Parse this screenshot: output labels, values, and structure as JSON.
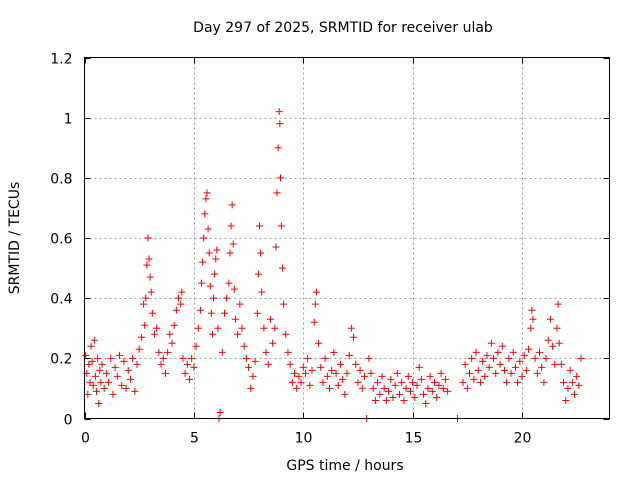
{
  "chart_data": {
    "type": "scatter",
    "title": "Day 297 of 2025, SRMTID for receiver ulab",
    "xlabel": "GPS time / hours",
    "ylabel": "SRMTID / TECUs",
    "xlim": [
      0,
      24
    ],
    "ylim": [
      0,
      1.2
    ],
    "x_ticks": [
      0,
      5,
      10,
      15,
      20
    ],
    "x_tick_labels": [
      "0",
      "5",
      "10",
      "15",
      "20"
    ],
    "y_ticks": [
      0,
      0.2,
      0.4,
      0.6,
      0.8,
      1.0,
      1.2
    ],
    "y_tick_labels": [
      "0",
      "0.2",
      "0.4",
      "0.6",
      "0.8",
      "1",
      "1.2"
    ],
    "grid": true,
    "marker": "plus",
    "series": [
      {
        "name": "SRMTID",
        "color": "#ff0000",
        "points": [
          [
            0.05,
            0.21
          ],
          [
            0.1,
            0.15
          ],
          [
            0.15,
            0.08
          ],
          [
            0.2,
            0.18
          ],
          [
            0.25,
            0.12
          ],
          [
            0.3,
            0.24
          ],
          [
            0.35,
            0.19
          ],
          [
            0.4,
            0.11
          ],
          [
            0.45,
            0.26
          ],
          [
            0.5,
            0.14
          ],
          [
            0.55,
            0.09
          ],
          [
            0.6,
            0.2
          ],
          [
            0.65,
            0.05
          ],
          [
            0.7,
            0.16
          ],
          [
            0.75,
            0.12
          ],
          [
            0.8,
            0.18
          ],
          [
            0.9,
            0.1
          ],
          [
            1.0,
            0.15
          ],
          [
            1.1,
            0.12
          ],
          [
            1.2,
            0.2
          ],
          [
            1.3,
            0.08
          ],
          [
            1.4,
            0.17
          ],
          [
            1.5,
            0.14
          ],
          [
            1.6,
            0.21
          ],
          [
            1.7,
            0.11
          ],
          [
            1.8,
            0.19
          ],
          [
            1.9,
            0.1
          ],
          [
            2.0,
            0.16
          ],
          [
            2.1,
            0.13
          ],
          [
            2.2,
            0.2
          ],
          [
            2.3,
            0.09
          ],
          [
            2.4,
            0.18
          ],
          [
            2.5,
            0.23
          ],
          [
            2.6,
            0.27
          ],
          [
            2.7,
            0.38
          ],
          [
            2.75,
            0.31
          ],
          [
            2.8,
            0.4
          ],
          [
            2.85,
            0.51
          ],
          [
            2.9,
            0.6
          ],
          [
            2.95,
            0.53
          ],
          [
            3.0,
            0.47
          ],
          [
            3.05,
            0.42
          ],
          [
            3.1,
            0.35
          ],
          [
            3.2,
            0.28
          ],
          [
            3.3,
            0.3
          ],
          [
            3.4,
            0.22
          ],
          [
            3.5,
            0.18
          ],
          [
            3.6,
            0.2
          ],
          [
            3.7,
            0.15
          ],
          [
            3.8,
            0.22
          ],
          [
            3.9,
            0.28
          ],
          [
            4.0,
            0.25
          ],
          [
            4.1,
            0.31
          ],
          [
            4.2,
            0.36
          ],
          [
            4.3,
            0.4
          ],
          [
            4.4,
            0.38
          ],
          [
            4.45,
            0.42
          ],
          [
            4.5,
            0.2
          ],
          [
            4.6,
            0.15
          ],
          [
            4.7,
            0.18
          ],
          [
            4.8,
            0.13
          ],
          [
            4.9,
            0.2
          ],
          [
            5.0,
            0.17
          ],
          [
            5.1,
            0.24
          ],
          [
            5.2,
            0.3
          ],
          [
            5.3,
            0.36
          ],
          [
            5.35,
            0.45
          ],
          [
            5.4,
            0.52
          ],
          [
            5.45,
            0.6
          ],
          [
            5.5,
            0.68
          ],
          [
            5.55,
            0.73
          ],
          [
            5.6,
            0.75
          ],
          [
            5.65,
            0.63
          ],
          [
            5.7,
            0.55
          ],
          [
            5.75,
            0.44
          ],
          [
            5.8,
            0.35
          ],
          [
            5.85,
            0.28
          ],
          [
            5.9,
            0.4
          ],
          [
            5.95,
            0.48
          ],
          [
            6.0,
            0.53
          ],
          [
            6.05,
            0.56
          ],
          [
            6.1,
            0.3
          ],
          [
            6.15,
            0.0
          ],
          [
            6.2,
            0.02
          ],
          [
            6.3,
            0.22
          ],
          [
            6.4,
            0.35
          ],
          [
            6.5,
            0.4
          ],
          [
            6.6,
            0.45
          ],
          [
            6.65,
            0.55
          ],
          [
            6.7,
            0.64
          ],
          [
            6.75,
            0.71
          ],
          [
            6.8,
            0.58
          ],
          [
            6.85,
            0.43
          ],
          [
            6.9,
            0.33
          ],
          [
            7.0,
            0.28
          ],
          [
            7.1,
            0.38
          ],
          [
            7.2,
            0.3
          ],
          [
            7.3,
            0.24
          ],
          [
            7.4,
            0.2
          ],
          [
            7.5,
            0.17
          ],
          [
            7.6,
            0.1
          ],
          [
            7.7,
            0.14
          ],
          [
            7.8,
            0.19
          ],
          [
            7.9,
            0.35
          ],
          [
            7.95,
            0.48
          ],
          [
            8.0,
            0.64
          ],
          [
            8.05,
            0.55
          ],
          [
            8.1,
            0.42
          ],
          [
            8.2,
            0.3
          ],
          [
            8.3,
            0.22
          ],
          [
            8.4,
            0.18
          ],
          [
            8.5,
            0.33
          ],
          [
            8.6,
            0.25
          ],
          [
            8.7,
            0.3
          ],
          [
            8.75,
            0.57
          ],
          [
            8.8,
            0.75
          ],
          [
            8.85,
            0.9
          ],
          [
            8.9,
            1.02
          ],
          [
            8.93,
            0.98
          ],
          [
            8.96,
            0.8
          ],
          [
            9.0,
            0.64
          ],
          [
            9.05,
            0.5
          ],
          [
            9.1,
            0.38
          ],
          [
            9.2,
            0.28
          ],
          [
            9.3,
            0.22
          ],
          [
            9.4,
            0.18
          ],
          [
            9.5,
            0.12
          ],
          [
            9.6,
            0.15
          ],
          [
            9.7,
            0.1
          ],
          [
            9.8,
            0.14
          ],
          [
            9.9,
            0.12
          ],
          [
            10.0,
            0.17
          ],
          [
            10.1,
            0.15
          ],
          [
            10.2,
            0.2
          ],
          [
            10.3,
            0.11
          ],
          [
            10.4,
            0.16
          ],
          [
            10.5,
            0.32
          ],
          [
            10.55,
            0.38
          ],
          [
            10.6,
            0.42
          ],
          [
            10.7,
            0.25
          ],
          [
            10.8,
            0.17
          ],
          [
            10.9,
            0.12
          ],
          [
            11.0,
            0.2
          ],
          [
            11.1,
            0.14
          ],
          [
            11.2,
            0.1
          ],
          [
            11.3,
            0.16
          ],
          [
            11.4,
            0.22
          ],
          [
            11.5,
            0.15
          ],
          [
            11.6,
            0.11
          ],
          [
            11.7,
            0.18
          ],
          [
            11.8,
            0.13
          ],
          [
            11.9,
            0.08
          ],
          [
            12.0,
            0.15
          ],
          [
            12.1,
            0.21
          ],
          [
            12.2,
            0.3
          ],
          [
            12.3,
            0.27
          ],
          [
            12.4,
            0.18
          ],
          [
            12.5,
            0.12
          ],
          [
            12.6,
            0.16
          ],
          [
            12.7,
            0.1
          ],
          [
            12.8,
            0.14
          ],
          [
            12.9,
            0.0
          ],
          [
            13.0,
            0.2
          ],
          [
            13.1,
            0.15
          ],
          [
            13.2,
            0.1
          ],
          [
            13.3,
            0.06
          ],
          [
            13.4,
            0.12
          ],
          [
            13.5,
            0.08
          ],
          [
            13.6,
            0.14
          ],
          [
            13.7,
            0.1
          ],
          [
            13.8,
            0.06
          ],
          [
            13.9,
            0.09
          ],
          [
            14.0,
            0.13
          ],
          [
            14.1,
            0.07
          ],
          [
            14.2,
            0.11
          ],
          [
            14.3,
            0.15
          ],
          [
            14.4,
            0.08
          ],
          [
            14.5,
            0.12
          ],
          [
            14.6,
            0.06
          ],
          [
            14.7,
            0.1
          ],
          [
            14.8,
            0.14
          ],
          [
            14.9,
            0.09
          ],
          [
            15.0,
            0.12
          ],
          [
            15.1,
            0.07
          ],
          [
            15.2,
            0.11
          ],
          [
            15.3,
            0.17
          ],
          [
            15.4,
            0.13
          ],
          [
            15.5,
            0.08
          ],
          [
            15.6,
            0.05
          ],
          [
            15.7,
            0.1
          ],
          [
            15.8,
            0.14
          ],
          [
            15.9,
            0.09
          ],
          [
            16.0,
            0.12
          ],
          [
            16.1,
            0.07
          ],
          [
            16.2,
            0.11
          ],
          [
            16.3,
            0.15
          ],
          [
            16.4,
            0.1
          ],
          [
            16.5,
            0.13
          ],
          [
            16.6,
            0.09
          ],
          [
            17.05,
            0.0
          ],
          [
            17.3,
            0.12
          ],
          [
            17.4,
            0.18
          ],
          [
            17.5,
            0.1
          ],
          [
            17.6,
            0.15
          ],
          [
            17.7,
            0.2
          ],
          [
            17.8,
            0.13
          ],
          [
            17.9,
            0.22
          ],
          [
            18.0,
            0.16
          ],
          [
            18.1,
            0.12
          ],
          [
            18.2,
            0.19
          ],
          [
            18.3,
            0.14
          ],
          [
            18.4,
            0.21
          ],
          [
            18.5,
            0.17
          ],
          [
            18.6,
            0.25
          ],
          [
            18.7,
            0.2
          ],
          [
            18.8,
            0.15
          ],
          [
            18.9,
            0.22
          ],
          [
            19.0,
            0.18
          ],
          [
            19.1,
            0.24
          ],
          [
            19.2,
            0.16
          ],
          [
            19.3,
            0.12
          ],
          [
            19.4,
            0.2
          ],
          [
            19.5,
            0.15
          ],
          [
            19.6,
            0.22
          ],
          [
            19.7,
            0.17
          ],
          [
            19.8,
            0.12
          ],
          [
            19.9,
            0.19
          ],
          [
            20.0,
            0.14
          ],
          [
            20.1,
            0.21
          ],
          [
            20.2,
            0.16
          ],
          [
            20.3,
            0.23
          ],
          [
            20.4,
            0.3
          ],
          [
            20.45,
            0.36
          ],
          [
            20.5,
            0.33
          ],
          [
            20.6,
            0.2
          ],
          [
            20.7,
            0.15
          ],
          [
            20.8,
            0.22
          ],
          [
            20.9,
            0.17
          ],
          [
            21.0,
            0.12
          ],
          [
            21.1,
            0.2
          ],
          [
            21.2,
            0.26
          ],
          [
            21.3,
            0.33
          ],
          [
            21.4,
            0.24
          ],
          [
            21.5,
            0.18
          ],
          [
            21.6,
            0.3
          ],
          [
            21.65,
            0.38
          ],
          [
            21.7,
            0.25
          ],
          [
            21.8,
            0.18
          ],
          [
            21.9,
            0.12
          ],
          [
            22.0,
            0.06
          ],
          [
            22.1,
            0.1
          ],
          [
            22.2,
            0.16
          ],
          [
            22.3,
            0.12
          ],
          [
            22.4,
            0.08
          ],
          [
            22.5,
            0.14
          ],
          [
            22.6,
            0.11
          ],
          [
            22.7,
            0.2
          ]
        ]
      }
    ]
  }
}
